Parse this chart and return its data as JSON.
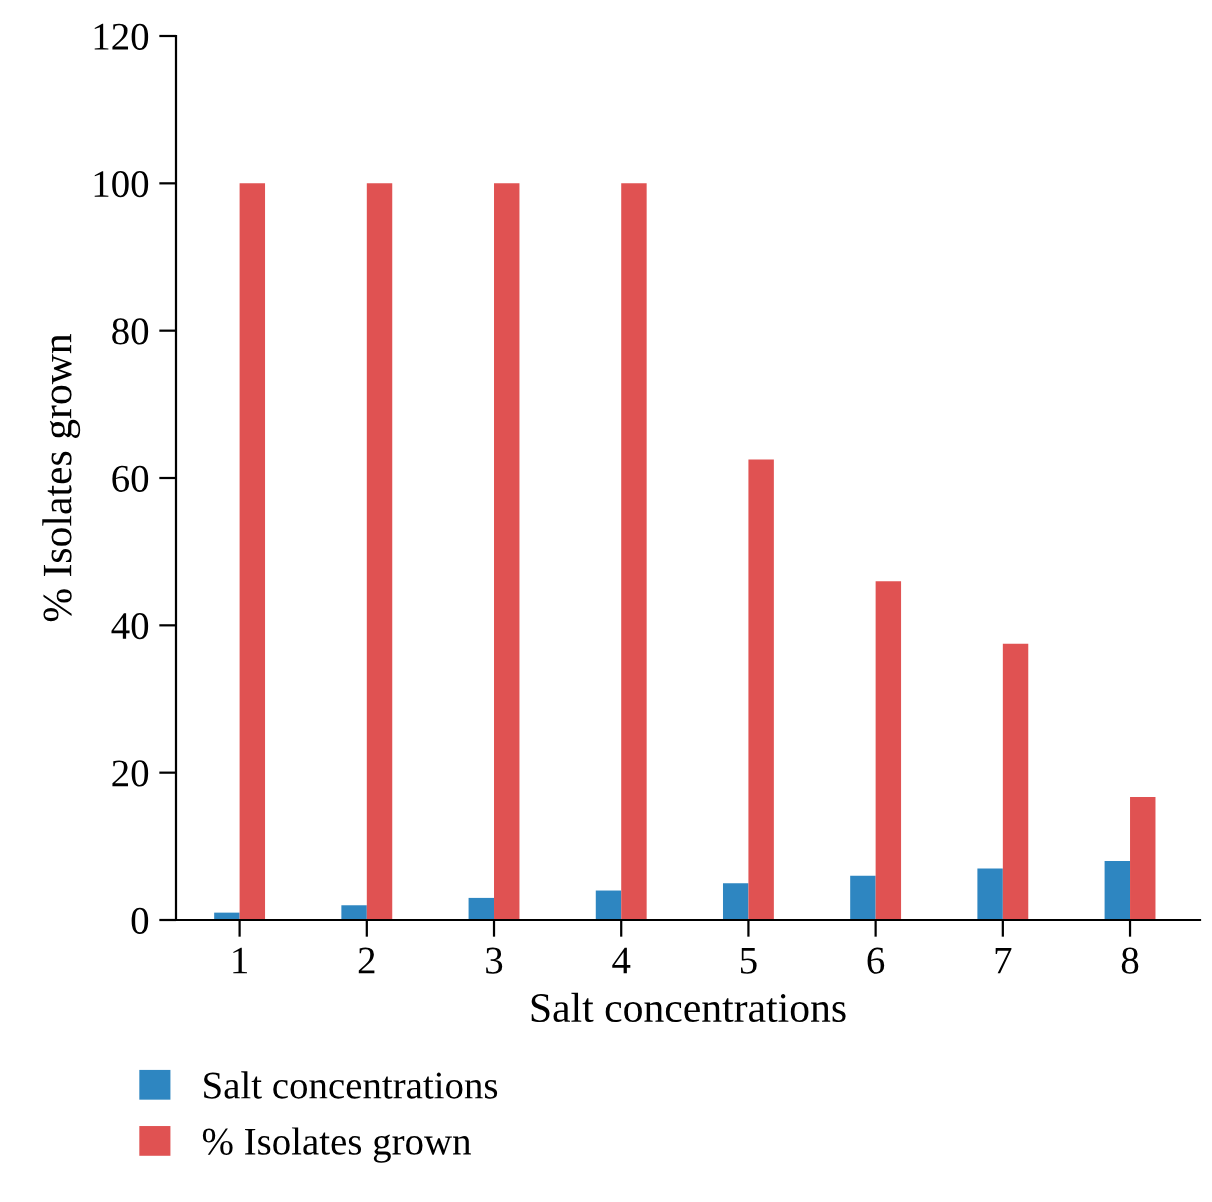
{
  "chart_data": {
    "type": "bar",
    "xlabel": "Salt concentrations",
    "ylabel": "% Isolates grown",
    "categories": [
      "1",
      "2",
      "3",
      "4",
      "5",
      "6",
      "7",
      "8"
    ],
    "series": [
      {
        "name": "Salt concentrations",
        "color": "#2e86c1",
        "values": [
          1,
          2,
          3,
          4,
          5,
          6,
          7,
          8
        ]
      },
      {
        "name": "% Isolates grown",
        "color": "#e05252",
        "values": [
          100,
          100,
          100,
          100,
          62.5,
          46,
          37.5,
          16.7
        ]
      }
    ],
    "ylim": [
      0,
      120
    ],
    "yticks": [
      0,
      20,
      40,
      60,
      80,
      100,
      120
    ],
    "grid": false,
    "legend": "bottom"
  }
}
